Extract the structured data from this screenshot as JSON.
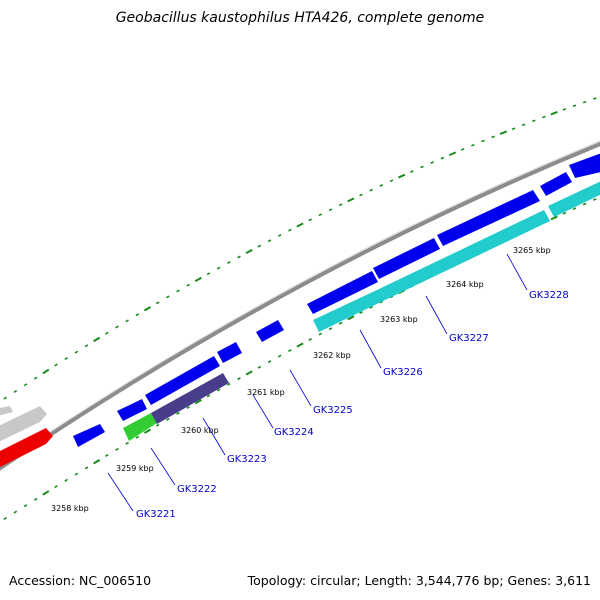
{
  "title": "Geobacillus kaustophilus HTA426, complete genome",
  "footer": {
    "accession": "Accession: NC_006510",
    "summary": "Topology: circular; Length: 3,544,776 bp; Genes: 3,611"
  },
  "colors": {
    "backbone": "#8c8c8c",
    "tick": "#1a8a1a",
    "gene_forward": "#0000ee",
    "gene_teal": "#22cccc",
    "gene_slate": "#483d8b",
    "gene_green": "#33cc33",
    "gene_red": "#ee0000",
    "gene_gray": "#c8c8c8",
    "gene_label": "#0000cc"
  },
  "kbp_labels": [
    "3258 kbp",
    "3259 kbp",
    "3260 kbp",
    "3261 kbp",
    "3262 kbp",
    "3263 kbp",
    "3264 kbp",
    "3265 kbp"
  ],
  "gene_labels": [
    "GK3221",
    "GK3222",
    "GK3223",
    "GK3224",
    "GK3225",
    "GK3226",
    "GK3227",
    "GK3228"
  ]
}
